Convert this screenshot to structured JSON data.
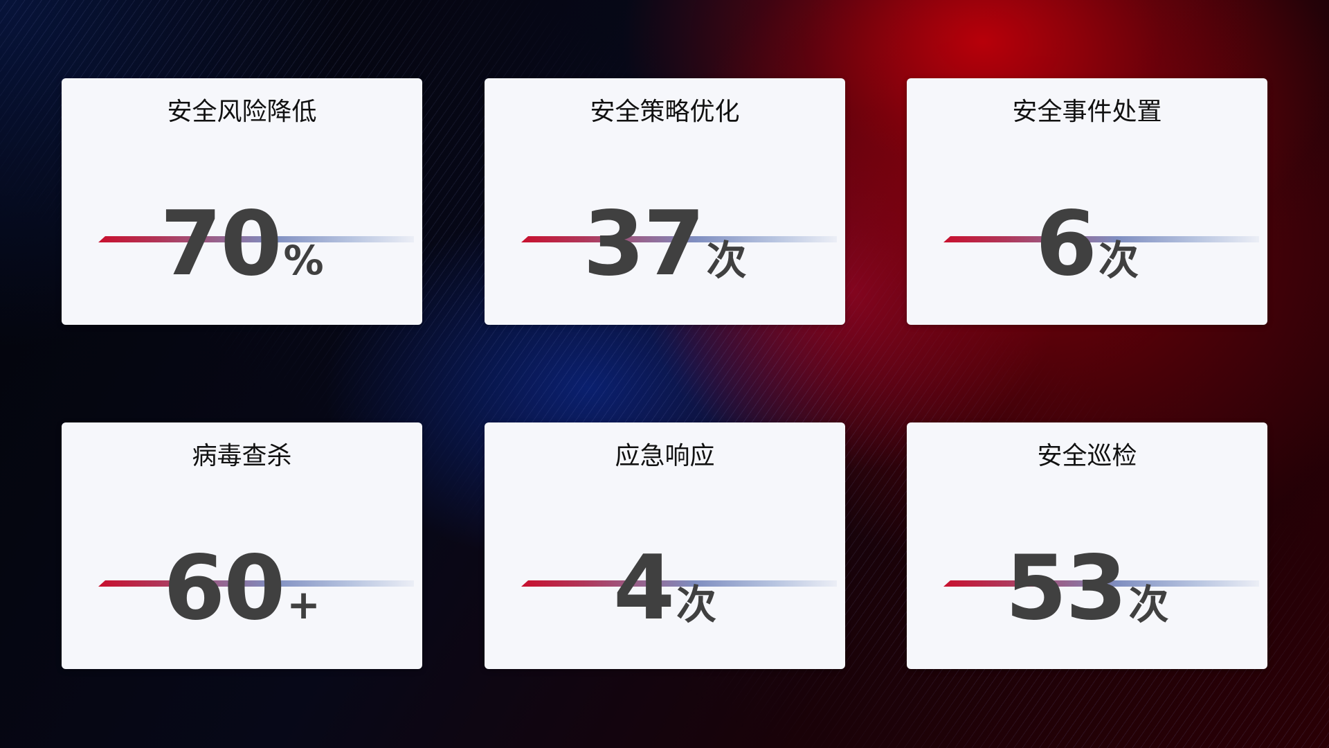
{
  "cards": [
    {
      "title": "安全风险降低",
      "value": "70",
      "unit": "%"
    },
    {
      "title": "安全策略优化",
      "value": "37",
      "unit": "次"
    },
    {
      "title": "安全事件处置",
      "value": "6",
      "unit": "次"
    },
    {
      "title": "病毒查杀",
      "value": "60",
      "unit": "+"
    },
    {
      "title": "应急响应",
      "value": "4",
      "unit": "次"
    },
    {
      "title": "安全巡检",
      "value": "53",
      "unit": "次"
    }
  ],
  "colors": {
    "accent_red": "#c8102e",
    "accent_blue": "#7f8ec0",
    "card_bg": "#f6f7fb",
    "value_text": "#404040"
  }
}
